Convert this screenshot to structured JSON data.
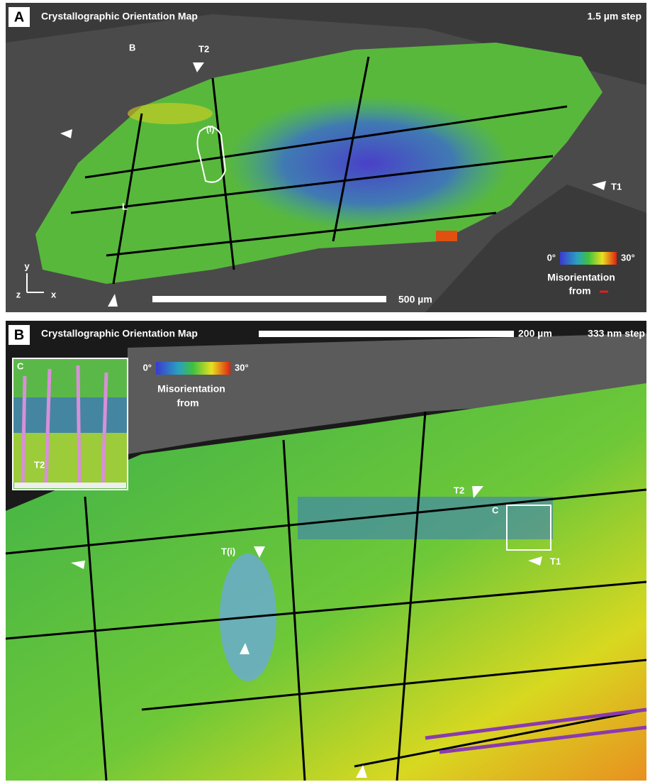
{
  "panels": [
    {
      "label": "A",
      "title": "Crystallographic Orientation Map",
      "step": "1.5 µm step",
      "scale_bar": "500 µm",
      "legend": {
        "min": "0°",
        "max": "30°",
        "caption": [
          "Misorientation",
          "from"
        ]
      },
      "annotations": [
        "B",
        "T2",
        "T1",
        "L",
        "(i)"
      ],
      "axes": [
        "y",
        "z",
        "x"
      ]
    },
    {
      "label": "B",
      "title": "Crystallographic Orientation Map",
      "scale_bar": "200 µm",
      "step": "333 nm step",
      "legend": {
        "min": "0°",
        "max": "30°",
        "caption": [
          "Misorientation",
          "from"
        ]
      },
      "inset": {
        "label": "C",
        "annotation": "T2"
      },
      "annotations": [
        "T2",
        "C",
        "T1",
        "T(i)"
      ]
    }
  ]
}
